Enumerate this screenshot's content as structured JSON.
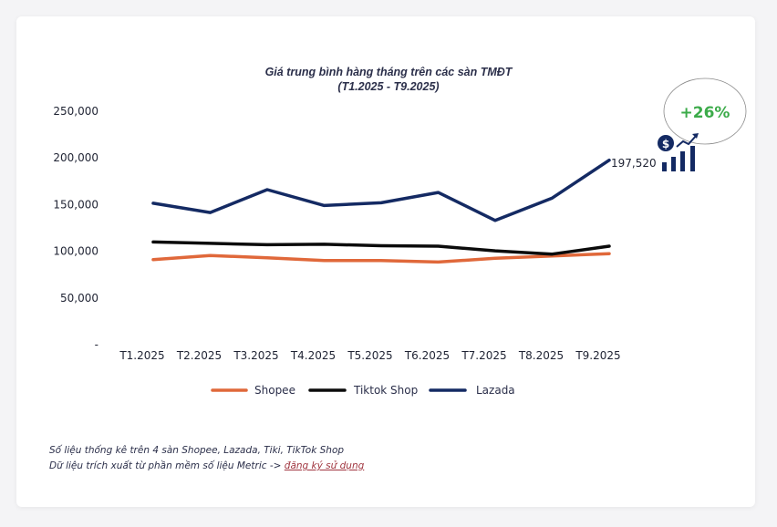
{
  "chart_data": {
    "type": "line",
    "title": "Giá trung bình hàng tháng trên các sàn TMĐT",
    "subtitle": "(T1.2025 - T9.2025)",
    "categories": [
      "T1.2025",
      "T2.2025",
      "T3.2025",
      "T4.2025",
      "T5.2025",
      "T6.2025",
      "T7.2025",
      "T8.2025",
      "T9.2025"
    ],
    "ylim": [
      0,
      250000
    ],
    "yticks": [
      0,
      50000,
      100000,
      150000,
      200000,
      250000
    ],
    "ytick_labels": [
      "-",
      "50,000",
      "100,000",
      "150,000",
      "200,000",
      "250,000"
    ],
    "series": [
      {
        "name": "Shopee",
        "color": "#e0683a",
        "values": [
          91000,
          95500,
          93000,
          90000,
          90000,
          88500,
          92500,
          95000,
          97500
        ]
      },
      {
        "name": "Tiktok Shop",
        "color": "#0b0b0b",
        "values": [
          110000,
          108500,
          107000,
          107500,
          106000,
          105500,
          100500,
          97000,
          105500
        ]
      },
      {
        "name": "Lazada",
        "color": "#142a63",
        "values": [
          151500,
          141500,
          166000,
          149000,
          152000,
          163000,
          133000,
          157000,
          197520
        ]
      }
    ],
    "end_label": "197,520",
    "annotation": "+26%",
    "legend": "bottom",
    "grid": false,
    "xlabel": "",
    "ylabel": ""
  },
  "notes": {
    "line1": "Số liệu thống kê trên 4 sàn Shopee, Lazada, Tiki, TikTok Shop",
    "line2_prefix": "Dữ liệu trích xuất từ phần mềm số liệu Metric -> ",
    "link_text": "đăng ký sử dụng"
  },
  "colors": {
    "badge": "#3cab4a",
    "icon": "#142a63",
    "link": "#a0353f"
  },
  "icons": [
    "dollar-coin-icon",
    "growth-bar-chart-icon"
  ]
}
